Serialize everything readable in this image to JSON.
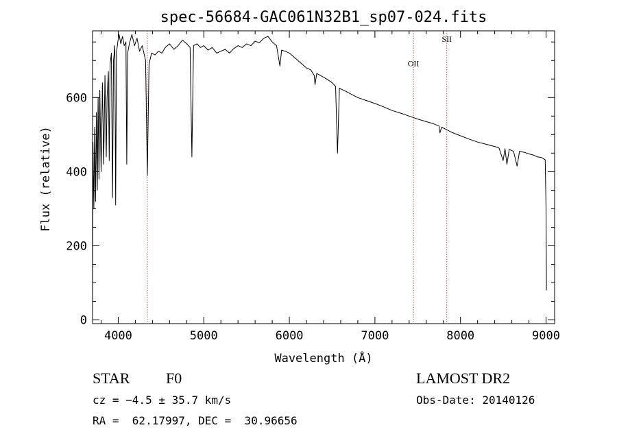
{
  "chart_data": {
    "type": "line",
    "title": "spec-56684-GAC061N32B1_sp07-024.fits",
    "xlabel": "Wavelength (Å)",
    "ylabel": "Flux (relative)",
    "xlim": [
      3700,
      9100
    ],
    "ylim": [
      -10,
      780
    ],
    "x_ticks": [
      4000,
      5000,
      6000,
      7000,
      8000,
      9000
    ],
    "y_ticks": [
      0,
      200,
      400,
      600
    ],
    "grid": false,
    "series": [
      {
        "points": [
          [
            3700,
            0
          ],
          [
            3705,
            480
          ],
          [
            3715,
            300
          ],
          [
            3725,
            520
          ],
          [
            3735,
            320
          ],
          [
            3745,
            560
          ],
          [
            3755,
            350
          ],
          [
            3765,
            600
          ],
          [
            3775,
            380
          ],
          [
            3785,
            620
          ],
          [
            3800,
            400
          ],
          [
            3815,
            640
          ],
          [
            3830,
            420
          ],
          [
            3845,
            660
          ],
          [
            3860,
            440
          ],
          [
            3870,
            600
          ],
          [
            3885,
            670
          ],
          [
            3895,
            430
          ],
          [
            3905,
            690
          ],
          [
            3920,
            720
          ],
          [
            3933,
            330
          ],
          [
            3945,
            700
          ],
          [
            3960,
            740
          ],
          [
            3970,
            310
          ],
          [
            3980,
            720
          ],
          [
            3995,
            750
          ],
          [
            4010,
            770
          ],
          [
            4030,
            745
          ],
          [
            4050,
            765
          ],
          [
            4070,
            740
          ],
          [
            4090,
            750
          ],
          [
            4100,
            420
          ],
          [
            4110,
            720
          ],
          [
            4130,
            745
          ],
          [
            4160,
            770
          ],
          [
            4190,
            740
          ],
          [
            4220,
            760
          ],
          [
            4250,
            725
          ],
          [
            4280,
            740
          ],
          [
            4300,
            720
          ],
          [
            4320,
            700
          ],
          [
            4340,
            390
          ],
          [
            4360,
            690
          ],
          [
            4390,
            720
          ],
          [
            4430,
            715
          ],
          [
            4470,
            725
          ],
          [
            4510,
            720
          ],
          [
            4550,
            735
          ],
          [
            4600,
            745
          ],
          [
            4650,
            730
          ],
          [
            4700,
            740
          ],
          [
            4750,
            755
          ],
          [
            4800,
            745
          ],
          [
            4840,
            735
          ],
          [
            4861,
            440
          ],
          [
            4880,
            740
          ],
          [
            4920,
            745
          ],
          [
            4960,
            735
          ],
          [
            5000,
            740
          ],
          [
            5050,
            728
          ],
          [
            5100,
            735
          ],
          [
            5150,
            720
          ],
          [
            5200,
            725
          ],
          [
            5250,
            730
          ],
          [
            5300,
            720
          ],
          [
            5350,
            732
          ],
          [
            5400,
            740
          ],
          [
            5450,
            735
          ],
          [
            5500,
            745
          ],
          [
            5550,
            740
          ],
          [
            5600,
            752
          ],
          [
            5650,
            748
          ],
          [
            5700,
            760
          ],
          [
            5750,
            765
          ],
          [
            5800,
            750
          ],
          [
            5850,
            740
          ],
          [
            5890,
            685
          ],
          [
            5910,
            728
          ],
          [
            5950,
            725
          ],
          [
            6000,
            720
          ],
          [
            6050,
            710
          ],
          [
            6100,
            700
          ],
          [
            6150,
            690
          ],
          [
            6200,
            680
          ],
          [
            6250,
            675
          ],
          [
            6290,
            660
          ],
          [
            6300,
            635
          ],
          [
            6320,
            665
          ],
          [
            6400,
            655
          ],
          [
            6450,
            648
          ],
          [
            6500,
            640
          ],
          [
            6540,
            630
          ],
          [
            6563,
            450
          ],
          [
            6585,
            625
          ],
          [
            6650,
            618
          ],
          [
            6700,
            612
          ],
          [
            6800,
            600
          ],
          [
            6900,
            592
          ],
          [
            7000,
            584
          ],
          [
            7100,
            575
          ],
          [
            7200,
            565
          ],
          [
            7300,
            558
          ],
          [
            7400,
            550
          ],
          [
            7500,
            542
          ],
          [
            7600,
            535
          ],
          [
            7700,
            528
          ],
          [
            7750,
            523
          ],
          [
            7760,
            505
          ],
          [
            7780,
            520
          ],
          [
            7850,
            512
          ],
          [
            7900,
            506
          ],
          [
            8000,
            497
          ],
          [
            8100,
            488
          ],
          [
            8200,
            480
          ],
          [
            8300,
            474
          ],
          [
            8400,
            468
          ],
          [
            8450,
            464
          ],
          [
            8498,
            430
          ],
          [
            8520,
            462
          ],
          [
            8542,
            420
          ],
          [
            8570,
            460
          ],
          [
            8620,
            455
          ],
          [
            8662,
            415
          ],
          [
            8690,
            455
          ],
          [
            8750,
            452
          ],
          [
            8800,
            448
          ],
          [
            8850,
            445
          ],
          [
            8900,
            440
          ],
          [
            8950,
            438
          ],
          [
            8990,
            432
          ],
          [
            9000,
            300
          ],
          [
            9005,
            80
          ]
        ]
      }
    ],
    "vlines": [
      4340,
      7450,
      7840
    ],
    "annotations": [
      {
        "text": "OII",
        "x": 7450,
        "y": 685
      },
      {
        "text": "SII",
        "x": 7840,
        "y": 750
      }
    ]
  },
  "info": {
    "object_class": "STAR",
    "subclass": "F0",
    "survey": "LAMOST DR2",
    "redshift": "cz = −4.5 ± 35.7 km/s",
    "obs_date": "Obs-Date: 20140126",
    "coords": "RA =  62.17997, DEC =  30.96656"
  },
  "colors": {
    "line": "#000000",
    "vline": "#d04040",
    "background": "#ffffff"
  }
}
